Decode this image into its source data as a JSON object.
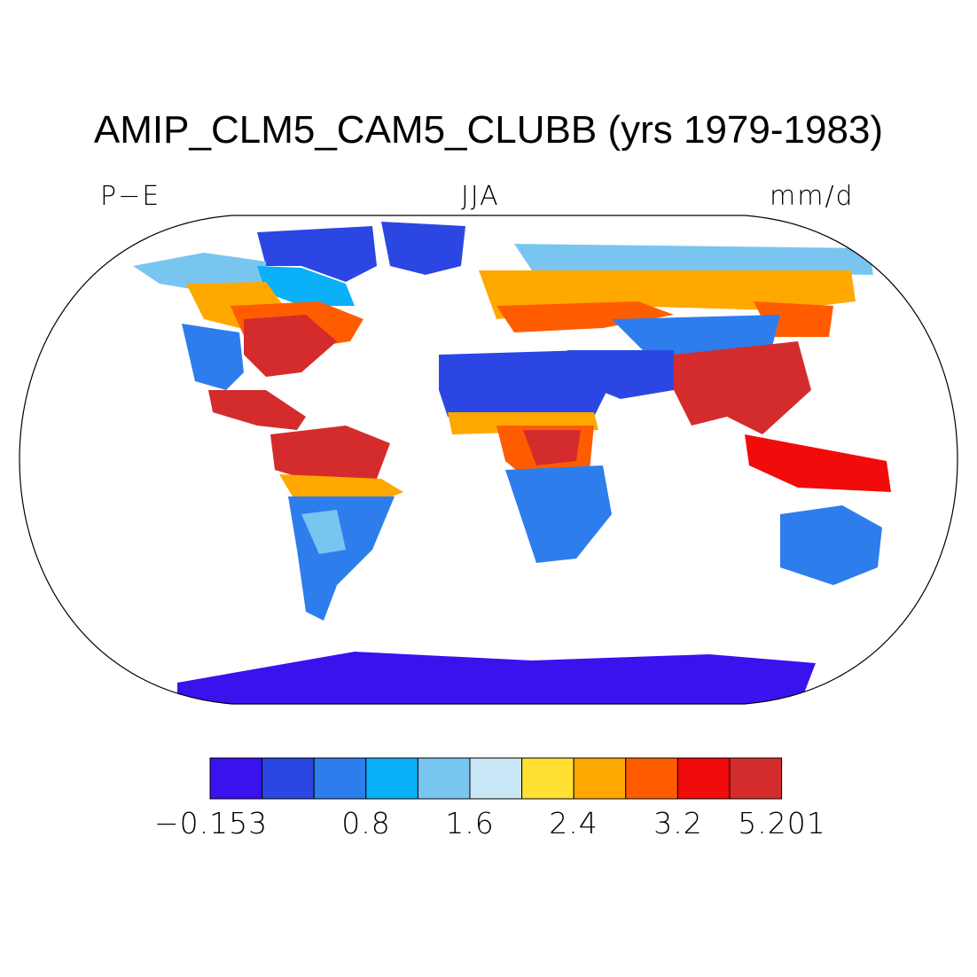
{
  "title": "AMIP_CLM5_CAM5_CLUBB (yrs 1979-1983)",
  "left_label": "P−E",
  "center_label": "JJA",
  "right_label": "mm/d",
  "colorbar": {
    "colors": [
      "#3a12ee",
      "#2c46e4",
      "#2e7ded",
      "#0ab0f8",
      "#78c5f0",
      "#c8e6f5",
      "#ffe033",
      "#ffa800",
      "#ff5c00",
      "#f20b0b",
      "#d42c2c"
    ],
    "tick_labels": [
      "−0.153",
      "0.8",
      "1.6",
      "2.4",
      "3.2",
      "5.201"
    ]
  }
}
